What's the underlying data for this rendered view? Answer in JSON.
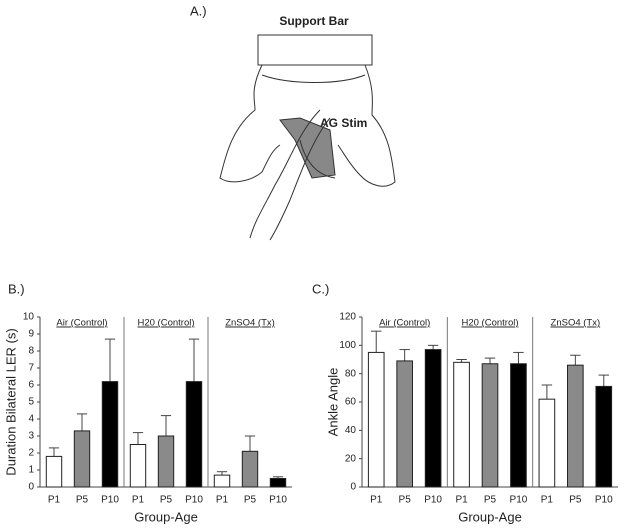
{
  "diagram": {
    "label": "A.)",
    "support_bar": "Support Bar",
    "stim": "AG Stim"
  },
  "chart_data": [
    {
      "type": "bar",
      "label": "B.)",
      "ylabel": "Duration Bilateral LER (s)",
      "xlabel": "Group-Age",
      "groups": [
        "Air (Control)",
        "H20 (Control)",
        "ZnSO4 (Tx)"
      ],
      "categories": [
        "P1",
        "P5",
        "P10"
      ],
      "colors": [
        "#ffffff",
        "#8a8a8a",
        "#000000"
      ],
      "values": [
        [
          1.8,
          3.3,
          6.2
        ],
        [
          2.5,
          3.0,
          6.2
        ],
        [
          0.7,
          2.1,
          0.5
        ]
      ],
      "errors": [
        [
          0.5,
          1.0,
          2.5
        ],
        [
          0.7,
          1.2,
          2.5
        ],
        [
          0.2,
          0.9,
          0.1
        ]
      ],
      "ylim": [
        0,
        10
      ],
      "yticks": [
        0,
        1,
        2,
        3,
        4,
        5,
        6,
        7,
        8,
        9,
        10
      ]
    },
    {
      "type": "bar",
      "label": "C.)",
      "ylabel": "Ankle Angle",
      "xlabel": "Group-Age",
      "groups": [
        "Air (Control)",
        "H20 (Control)",
        "ZnSO4 (Tx)"
      ],
      "categories": [
        "P1",
        "P5",
        "P10"
      ],
      "colors": [
        "#ffffff",
        "#8a8a8a",
        "#000000"
      ],
      "values": [
        [
          95,
          89,
          97
        ],
        [
          88,
          87,
          87
        ],
        [
          62,
          86,
          71
        ]
      ],
      "errors": [
        [
          15,
          8,
          3
        ],
        [
          2,
          4,
          8
        ],
        [
          10,
          7,
          8
        ]
      ],
      "ylim": [
        0,
        120
      ],
      "yticks": [
        0,
        20,
        40,
        60,
        80,
        100,
        120
      ]
    }
  ]
}
